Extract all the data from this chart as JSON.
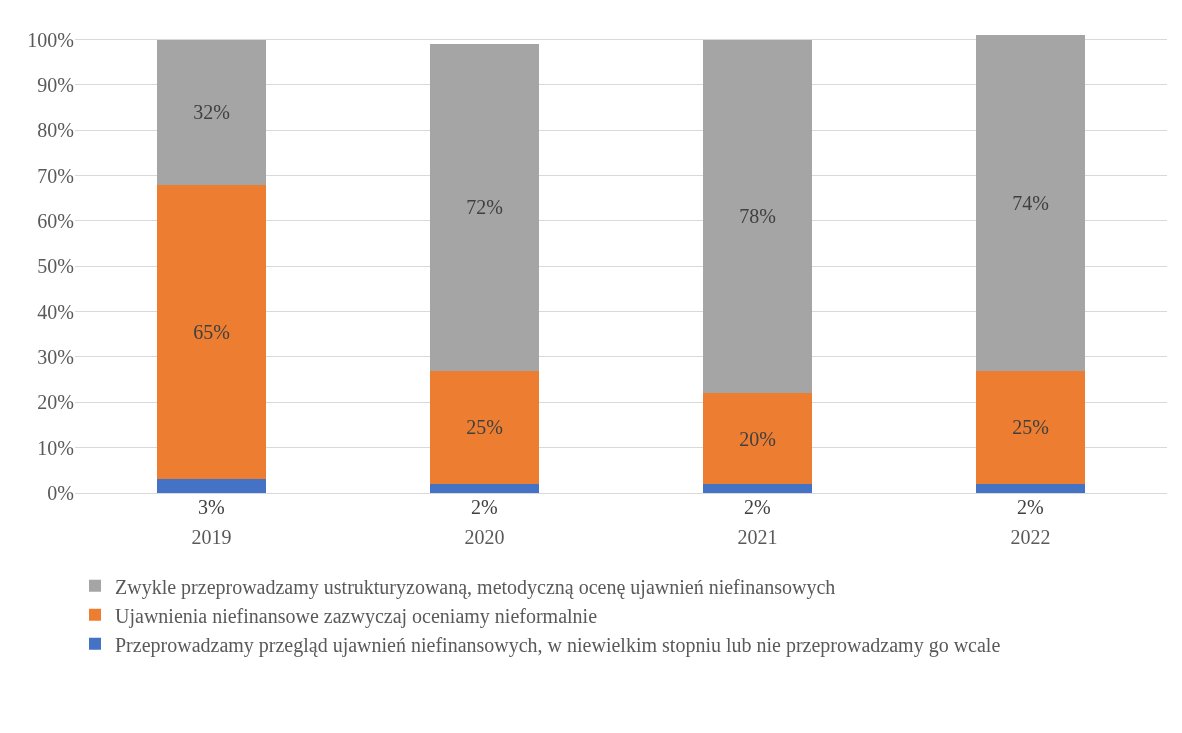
{
  "chart_data": {
    "type": "bar",
    "stacked": true,
    "categories": [
      "2019",
      "2020",
      "2021",
      "2022"
    ],
    "series": [
      {
        "name": "Przeprowadzamy przegląd ujawnień niefinansowych, w niewielkim stopniu lub nie przeprowadzamy go wcale",
        "color": "#4472c4",
        "values": [
          3,
          2,
          2,
          2
        ],
        "value_labels": [
          "3%",
          "2%",
          "2%",
          "2%"
        ]
      },
      {
        "name": "Ujawnienia niefinansowe zazwyczaj oceniamy nieformalnie",
        "color": "#ed7d31",
        "values": [
          65,
          25,
          20,
          25
        ],
        "value_labels": [
          "65%",
          "25%",
          "20%",
          "25%"
        ]
      },
      {
        "name": "Zwykle przeprowadzamy ustrukturyzowaną, metodyczną ocenę ujawnień niefinansowych",
        "color": "#a5a5a5",
        "values": [
          32,
          72,
          78,
          74
        ],
        "value_labels": [
          "32%",
          "72%",
          "78%",
          "74%"
        ]
      }
    ],
    "ylim": [
      0,
      101
    ],
    "yticks": [
      {
        "value": 0,
        "label": "0%"
      },
      {
        "value": 10,
        "label": "10%"
      },
      {
        "value": 20,
        "label": "20%"
      },
      {
        "value": 30,
        "label": "30%"
      },
      {
        "value": 40,
        "label": "40%"
      },
      {
        "value": 50,
        "label": "50%"
      },
      {
        "value": 60,
        "label": "60%"
      },
      {
        "value": 70,
        "label": "70%"
      },
      {
        "value": 80,
        "label": "80%"
      },
      {
        "value": 90,
        "label": "90%"
      },
      {
        "value": 100,
        "label": "100%"
      }
    ],
    "grid": "y",
    "legend": "bottom"
  }
}
